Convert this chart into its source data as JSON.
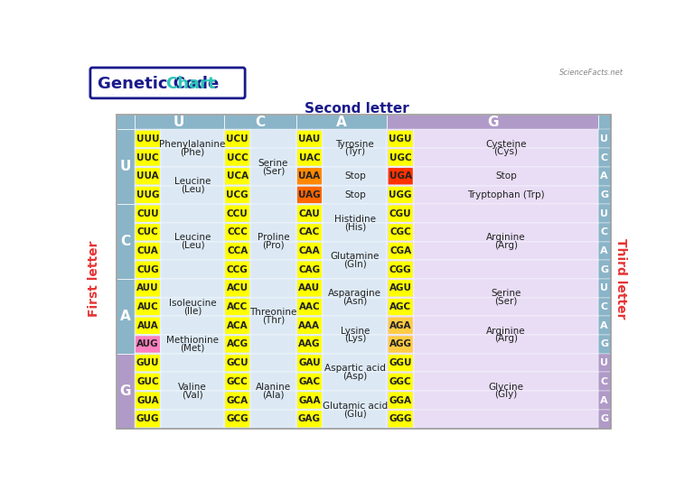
{
  "title_genetic_color": "#1a1a8c",
  "title_chart_color": "#2ec4b6",
  "second_letter_label": "Second letter",
  "first_letter_label": "First letter",
  "third_letter_label": "Third letter",
  "cell_bg_light": "#dce9f5",
  "cell_bg_purple": "#e8ddf5",
  "header_bg_blue": "#8ab4c8",
  "header_bg_purple": "#b09ac8",
  "codon_yellow": "#ffff00",
  "codon_orange": "#ff8800",
  "codon_red": "#ff3300",
  "codon_pink": "#ff80c0",
  "codon_gold": "#ffcc44",
  "rows": [
    {
      "first": "U",
      "cols": [
        {
          "key": "U",
          "codons": [
            "UUU",
            "UUC",
            "UUA",
            "UUG"
          ],
          "colors": [
            "#ffff00",
            "#ffff00",
            "#ffff00",
            "#ffff00"
          ],
          "groups": [
            {
              "rows": [
                0,
                1
              ],
              "lines": [
                "Phenylalanine",
                "(Phe)"
              ]
            },
            {
              "rows": [
                2,
                3
              ],
              "lines": [
                "Leucine",
                "(Leu)"
              ]
            }
          ]
        },
        {
          "key": "C",
          "codons": [
            "UCU",
            "UCC",
            "UCA",
            "UCG"
          ],
          "colors": [
            "#ffff00",
            "#ffff00",
            "#ffff00",
            "#ffff00"
          ],
          "groups": [
            {
              "rows": [
                0,
                1,
                2,
                3
              ],
              "lines": [
                "Serine",
                "(Ser)"
              ]
            }
          ]
        },
        {
          "key": "A",
          "codons": [
            "UAU",
            "UAC",
            "UAA",
            "UAG"
          ],
          "colors": [
            "#ffff00",
            "#ffff00",
            "#ff8800",
            "#ff6600"
          ],
          "groups": [
            {
              "rows": [
                0,
                1
              ],
              "lines": [
                "Tyrosine",
                "(Tyr)"
              ]
            },
            {
              "rows": [
                2
              ],
              "lines": [
                "Stop"
              ]
            },
            {
              "rows": [
                3
              ],
              "lines": [
                "Stop"
              ]
            }
          ]
        },
        {
          "key": "G",
          "codons": [
            "UGU",
            "UGC",
            "UGA",
            "UGG"
          ],
          "colors": [
            "#ffff00",
            "#ffff00",
            "#ff3300",
            "#ffff00"
          ],
          "groups": [
            {
              "rows": [
                0,
                1
              ],
              "lines": [
                "Cysteine",
                "(Cys)"
              ]
            },
            {
              "rows": [
                2
              ],
              "lines": [
                "Stop"
              ]
            },
            {
              "rows": [
                3
              ],
              "lines": [
                "Tryptophan (Trp)"
              ]
            }
          ]
        }
      ],
      "third": [
        "U",
        "C",
        "A",
        "G"
      ]
    },
    {
      "first": "C",
      "cols": [
        {
          "key": "U",
          "codons": [
            "CUU",
            "CUC",
            "CUA",
            "CUG"
          ],
          "colors": [
            "#ffff00",
            "#ffff00",
            "#ffff00",
            "#ffff00"
          ],
          "groups": [
            {
              "rows": [
                0,
                1,
                2,
                3
              ],
              "lines": [
                "Leucine",
                "(Leu)"
              ]
            }
          ]
        },
        {
          "key": "C",
          "codons": [
            "CCU",
            "CCC",
            "CCA",
            "CCG"
          ],
          "colors": [
            "#ffff00",
            "#ffff00",
            "#ffff00",
            "#ffff00"
          ],
          "groups": [
            {
              "rows": [
                0,
                1,
                2,
                3
              ],
              "lines": [
                "Proline",
                "(Pro)"
              ]
            }
          ]
        },
        {
          "key": "A",
          "codons": [
            "CAU",
            "CAC",
            "CAA",
            "CAG"
          ],
          "colors": [
            "#ffff00",
            "#ffff00",
            "#ffff00",
            "#ffff00"
          ],
          "groups": [
            {
              "rows": [
                0,
                1
              ],
              "lines": [
                "Histidine",
                "(His)"
              ]
            },
            {
              "rows": [
                2,
                3
              ],
              "lines": [
                "Glutamine",
                "(Gln)"
              ]
            }
          ]
        },
        {
          "key": "G",
          "codons": [
            "CGU",
            "CGC",
            "CGA",
            "CGG"
          ],
          "colors": [
            "#ffff00",
            "#ffff00",
            "#ffff00",
            "#ffff00"
          ],
          "groups": [
            {
              "rows": [
                0,
                1,
                2,
                3
              ],
              "lines": [
                "Arginine",
                "(Arg)"
              ]
            }
          ]
        }
      ],
      "third": [
        "U",
        "C",
        "A",
        "G"
      ]
    },
    {
      "first": "A",
      "cols": [
        {
          "key": "U",
          "codons": [
            "AUU",
            "AUC",
            "AUA",
            "AUG"
          ],
          "colors": [
            "#ffff00",
            "#ffff00",
            "#ffff00",
            "#ff80c0"
          ],
          "groups": [
            {
              "rows": [
                0,
                1,
                2
              ],
              "lines": [
                "Isoleucine",
                "(Ile)"
              ]
            },
            {
              "rows": [
                3
              ],
              "lines": [
                "Methionine",
                "(Met)"
              ]
            }
          ]
        },
        {
          "key": "C",
          "codons": [
            "ACU",
            "ACC",
            "ACA",
            "ACG"
          ],
          "colors": [
            "#ffff00",
            "#ffff00",
            "#ffff00",
            "#ffff00"
          ],
          "groups": [
            {
              "rows": [
                0,
                1,
                2,
                3
              ],
              "lines": [
                "Threonine",
                "(Thr)"
              ]
            }
          ]
        },
        {
          "key": "A",
          "codons": [
            "AAU",
            "AAC",
            "AAA",
            "AAG"
          ],
          "colors": [
            "#ffff00",
            "#ffff00",
            "#ffff00",
            "#ffff00"
          ],
          "groups": [
            {
              "rows": [
                0,
                1
              ],
              "lines": [
                "Asparagine",
                "(Asn)"
              ]
            },
            {
              "rows": [
                2,
                3
              ],
              "lines": [
                "Lysine",
                "(Lys)"
              ]
            }
          ]
        },
        {
          "key": "G",
          "codons": [
            "AGU",
            "AGC",
            "AGA",
            "AGG"
          ],
          "colors": [
            "#ffff00",
            "#ffff00",
            "#ffcc44",
            "#ffcc44"
          ],
          "groups": [
            {
              "rows": [
                0,
                1
              ],
              "lines": [
                "Serine",
                "(Ser)"
              ]
            },
            {
              "rows": [
                2,
                3
              ],
              "lines": [
                "Arginine",
                "(Arg)"
              ]
            }
          ]
        }
      ],
      "third": [
        "U",
        "C",
        "A",
        "G"
      ]
    },
    {
      "first": "G",
      "cols": [
        {
          "key": "U",
          "codons": [
            "GUU",
            "GUC",
            "GUA",
            "GUG"
          ],
          "colors": [
            "#ffff00",
            "#ffff00",
            "#ffff00",
            "#ffff00"
          ],
          "groups": [
            {
              "rows": [
                0,
                1,
                2,
                3
              ],
              "lines": [
                "Valine",
                "(Val)"
              ]
            }
          ]
        },
        {
          "key": "C",
          "codons": [
            "GCU",
            "GCC",
            "GCA",
            "GCG"
          ],
          "colors": [
            "#ffff00",
            "#ffff00",
            "#ffff00",
            "#ffff00"
          ],
          "groups": [
            {
              "rows": [
                0,
                1,
                2,
                3
              ],
              "lines": [
                "Alanine",
                "(Ala)"
              ]
            }
          ]
        },
        {
          "key": "A",
          "codons": [
            "GAU",
            "GAC",
            "GAA",
            "GAG"
          ],
          "colors": [
            "#ffff00",
            "#ffff00",
            "#ffff00",
            "#ffff00"
          ],
          "groups": [
            {
              "rows": [
                0,
                1
              ],
              "lines": [
                "Aspartic acid",
                "(Asp)"
              ]
            },
            {
              "rows": [
                2,
                3
              ],
              "lines": [
                "Glutamic acid",
                "(Glu)"
              ]
            }
          ]
        },
        {
          "key": "G",
          "codons": [
            "GGU",
            "GGC",
            "GGA",
            "GGG"
          ],
          "colors": [
            "#ffff00",
            "#ffff00",
            "#ffff00",
            "#ffff00"
          ],
          "groups": [
            {
              "rows": [
                0,
                1,
                2,
                3
              ],
              "lines": [
                "Glycine",
                "(Gly)"
              ]
            }
          ]
        }
      ],
      "third": [
        "U",
        "C",
        "A",
        "G"
      ]
    }
  ]
}
